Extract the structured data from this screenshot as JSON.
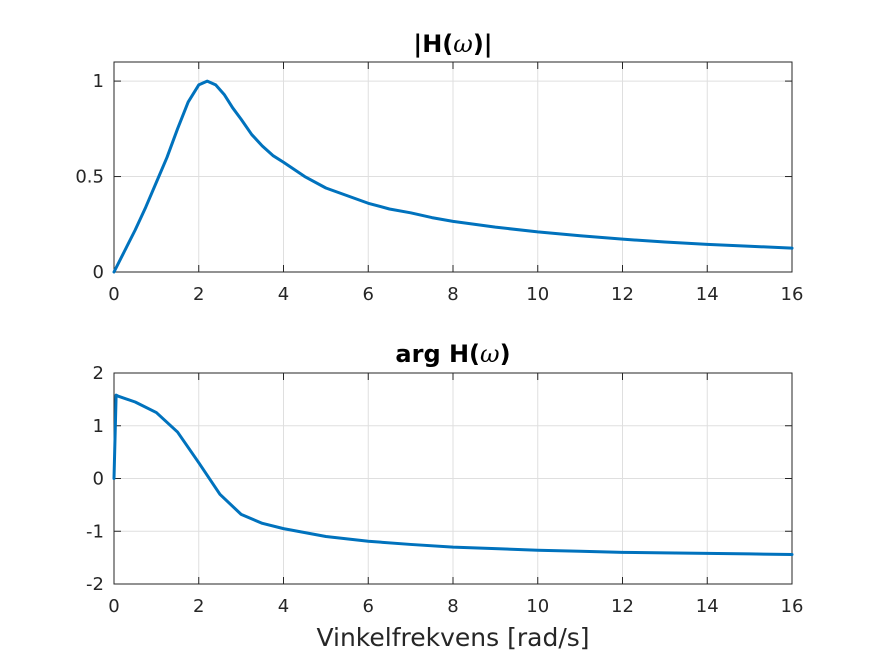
{
  "chart_data": [
    {
      "type": "line",
      "title_main": "|H(",
      "title_greek": "ω",
      "title_tail": ")|",
      "xlabel": "",
      "ylabel": "",
      "xlim": [
        0,
        16
      ],
      "ylim": [
        0,
        1.1
      ],
      "xticks": [
        0,
        2,
        4,
        6,
        8,
        10,
        12,
        14,
        16
      ],
      "yticks": [
        0,
        0.5,
        1
      ],
      "ytick_labels": [
        "0",
        "0.5",
        "1"
      ],
      "grid": true,
      "color": "#0072bd",
      "series": [
        {
          "x": [
            0,
            0.25,
            0.5,
            0.75,
            1.0,
            1.25,
            1.5,
            1.75,
            2.0,
            2.2,
            2.4,
            2.6,
            2.8,
            3.0,
            3.25,
            3.5,
            3.75,
            4.0,
            4.5,
            5.0,
            5.5,
            6.0,
            6.5,
            7.0,
            7.5,
            8.0,
            9.0,
            10.0,
            11.0,
            12.0,
            13.0,
            14.0,
            15.0,
            16.0
          ],
          "y": [
            0,
            0.11,
            0.22,
            0.34,
            0.47,
            0.6,
            0.75,
            0.89,
            0.98,
            1.0,
            0.98,
            0.93,
            0.86,
            0.8,
            0.72,
            0.66,
            0.61,
            0.575,
            0.5,
            0.44,
            0.4,
            0.36,
            0.33,
            0.31,
            0.285,
            0.265,
            0.235,
            0.21,
            0.19,
            0.172,
            0.157,
            0.145,
            0.135,
            0.125
          ]
        }
      ]
    },
    {
      "type": "line",
      "title_main": "arg H(",
      "title_greek": "ω",
      "title_tail": ")",
      "xlabel": "Vinkelfrekvens  [rad/s]",
      "ylabel": "",
      "xlim": [
        0,
        16
      ],
      "ylim": [
        -2,
        2
      ],
      "xticks": [
        0,
        2,
        4,
        6,
        8,
        10,
        12,
        14,
        16
      ],
      "yticks": [
        -2,
        -1,
        0,
        1,
        2
      ],
      "ytick_labels": [
        "-2",
        "-1",
        "0",
        "1",
        "2"
      ],
      "grid": true,
      "color": "#0072bd",
      "series": [
        {
          "x": [
            0,
            0.05,
            0.1,
            0.5,
            1.0,
            1.5,
            2.0,
            2.5,
            3.0,
            3.5,
            4.0,
            5.0,
            6.0,
            7.0,
            8.0,
            9.0,
            10.0,
            11.0,
            12.0,
            13.0,
            14.0,
            15.0,
            16.0
          ],
          "y": [
            0,
            1.58,
            1.56,
            1.45,
            1.25,
            0.88,
            0.3,
            -0.3,
            -0.68,
            -0.85,
            -0.95,
            -1.1,
            -1.19,
            -1.25,
            -1.3,
            -1.33,
            -1.36,
            -1.38,
            -1.4,
            -1.41,
            -1.42,
            -1.43,
            -1.44
          ]
        }
      ]
    }
  ]
}
